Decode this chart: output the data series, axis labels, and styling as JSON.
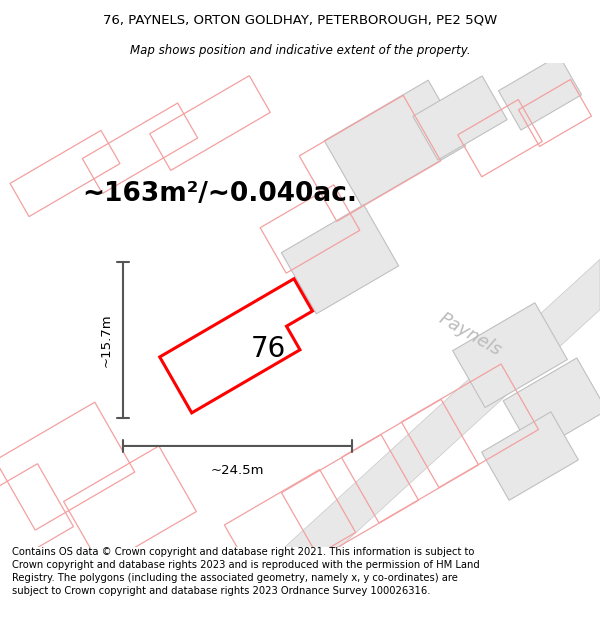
{
  "title_line1": "76, PAYNELS, ORTON GOLDHAY, PETERBOROUGH, PE2 5QW",
  "title_line2": "Map shows position and indicative extent of the property.",
  "area_label": "~163m²/~0.040ac.",
  "width_label": "~24.5m",
  "height_label": "~15.7m",
  "number_label": "76",
  "road_label": "Paynels",
  "footer_text": "Contains OS data © Crown copyright and database right 2021. This information is subject to Crown copyright and database rights 2023 and is reproduced with the permission of HM Land Registry. The polygons (including the associated geometry, namely x, y co-ordinates) are subject to Crown copyright and database rights 2023 Ordnance Survey 100026316.",
  "bg_color": "#ffffff",
  "highlight_fill": "#ffffff",
  "highlight_edge": "#ff0000",
  "building_fill": "#e8e8e8",
  "building_edge": "#c0c0c0",
  "road_fill": "#e8e8e8",
  "road_edge": "#c8c8c8",
  "pink_edge": "#f4a0a0",
  "pink_fill": "none",
  "dim_line_color": "#555555",
  "road_text_color": "#bbbbbb",
  "title_fontsize": 9.5,
  "subtitle_fontsize": 8.5,
  "area_fontsize": 19,
  "number_fontsize": 20,
  "dim_fontsize": 9.5,
  "road_fontsize": 13,
  "footer_fontsize": 7.2
}
